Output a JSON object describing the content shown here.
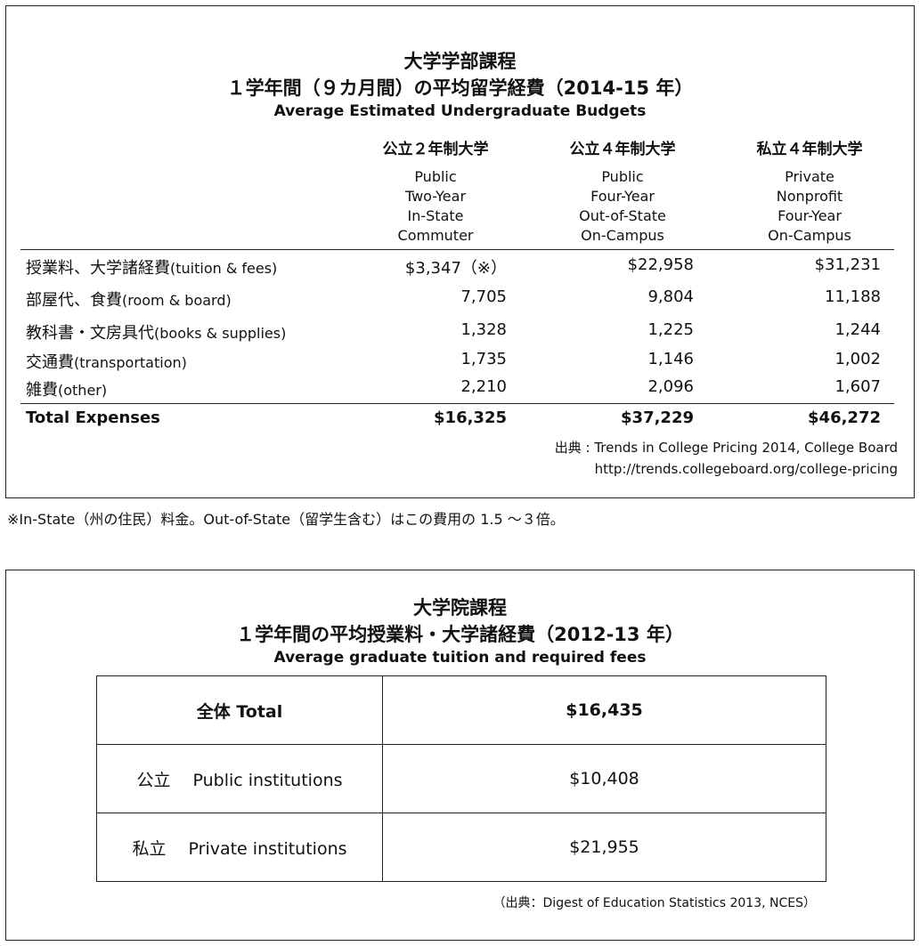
{
  "undergrad": {
    "title_jp_1": "大学学部課程",
    "title_jp_2": "１学年間（９カ月間）の平均留学経費（2014-15 年）",
    "title_en": "Average Estimated Undergraduate Budgets",
    "columns": [
      {
        "jp": "公立２年制大学",
        "en": [
          "Public",
          "Two-Year",
          "In-State",
          "Commuter"
        ]
      },
      {
        "jp": "公立４年制大学",
        "en": [
          "Public",
          "Four-Year",
          "Out-of-State",
          "On-Campus"
        ]
      },
      {
        "jp": "私立４年制大学",
        "en": [
          "Private",
          "Nonprofit",
          "Four-Year",
          "On-Campus"
        ]
      }
    ],
    "rows": [
      {
        "label_jp": "授業料、大学諸経費",
        "label_en": "(tuition & fees)",
        "values": [
          "$3,347（※）",
          "$22,958",
          "$31,231"
        ]
      },
      {
        "label_jp": "部屋代、食費",
        "label_en": "(room & board)",
        "values": [
          "7,705",
          "9,804",
          "11,188"
        ]
      },
      {
        "label_jp": "教科書・文房具代",
        "label_en": "(books & supplies)",
        "values": [
          "1,328",
          "1,225",
          "1,244"
        ]
      },
      {
        "label_jp": "交通費",
        "label_en": "(transportation)",
        "values": [
          "1,735",
          "1,146",
          "1,002"
        ]
      },
      {
        "label_jp": "雑費",
        "label_en": "(other)",
        "values": [
          "2,210",
          "2,096",
          "1,607"
        ]
      }
    ],
    "total": {
      "label": "Total Expenses",
      "values": [
        "$16,325",
        "$37,229",
        "$46,272"
      ]
    },
    "source_1": "出典 : Trends in College Pricing 2014, College Board",
    "source_2": "http://trends.collegeboard.org/college-pricing"
  },
  "note": "※In-State（州の住民）料金。Out-of-State（留学生含む）はこの費用の 1.5 ～３倍。",
  "graduate": {
    "title_jp_1": "大学院課程",
    "title_jp_2": "１学年間の平均授業料・大学諸経費（2012-13 年）",
    "title_en": "Average graduate tuition and required fees",
    "rows": [
      {
        "label": "全体 Total",
        "value": "$16,435"
      },
      {
        "label": "公立　 Public institutions",
        "value": "$10,408"
      },
      {
        "label": "私立　 Private institutions",
        "value": "$21,955"
      }
    ],
    "source": "（出典：Digest of Education Statistics 2013, NCES）"
  }
}
